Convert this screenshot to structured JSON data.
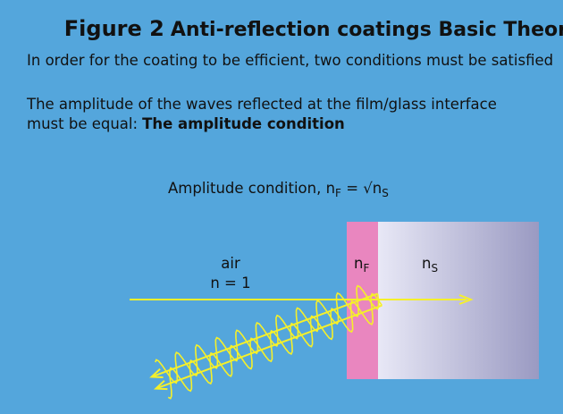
{
  "header": {
    "figure_label": "Figure 2",
    "title": "Anti-reflection coatings Basic Theory",
    "subtitle": "In order for the coating to be efficient, two conditions must be satisfied"
  },
  "paragraph": {
    "line1": "The amplitude of the waves reflected at the film/glass interface",
    "line2": "must be equal:",
    "emphasis": "The amplitude condition"
  },
  "formula": {
    "text": "Amplitude condition, n",
    "sub1": "F",
    "middle": " = √n",
    "sub2": "S"
  },
  "diagram": {
    "medium_label": "air",
    "medium_index": "n = 1",
    "film_symbol": "n",
    "film_sub": "F",
    "substrate_symbol": "n",
    "substrate_sub": "S"
  }
}
